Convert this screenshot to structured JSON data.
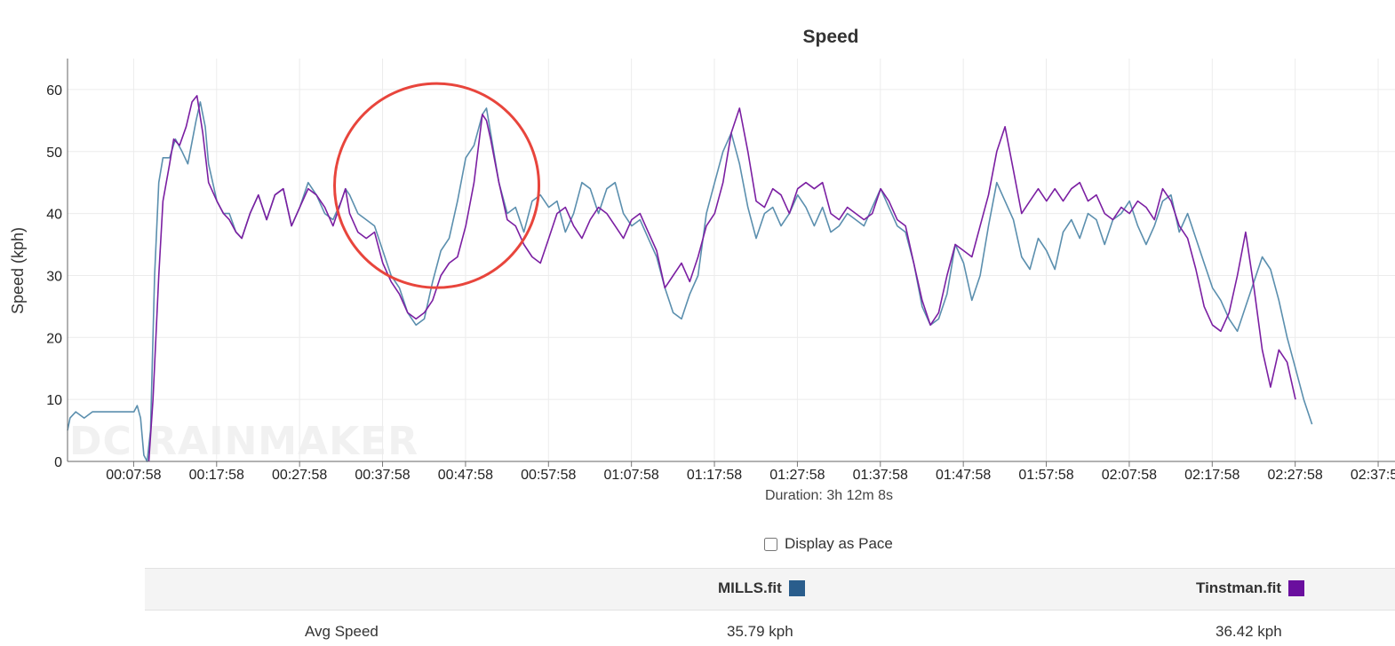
{
  "chart_data": {
    "type": "line",
    "title": "Speed",
    "ylabel": "Speed (kph)",
    "xlabel": "Duration: 3h 12m 8s",
    "watermark": "DC RAINMAKER",
    "ylim": [
      0,
      65
    ],
    "y_ticks": [
      "0",
      "10",
      "20",
      "30",
      "40",
      "50",
      "60"
    ],
    "x_range_min": [
      0,
      160
    ],
    "x_tick_labels": [
      "00:07:58",
      "00:17:58",
      "00:27:58",
      "00:37:58",
      "00:47:58",
      "00:57:58",
      "01:07:58",
      "01:17:58",
      "01:27:58",
      "01:37:58",
      "01:47:58",
      "01:57:58",
      "02:07:58",
      "02:17:58",
      "02:27:58",
      "02:37:58"
    ],
    "x_tick_minutes": [
      7.97,
      17.97,
      27.97,
      37.97,
      47.97,
      57.97,
      67.97,
      77.97,
      87.97,
      97.97,
      107.97,
      117.97,
      127.97,
      137.97,
      147.97,
      157.97
    ],
    "grid": true,
    "highlight_circle": {
      "center_min": 44.5,
      "center_kph": 44.5
    },
    "series": [
      {
        "name": "MILLS.fit",
        "color": "#5b8fae",
        "points": [
          [
            0,
            5
          ],
          [
            0.3,
            7
          ],
          [
            1,
            8
          ],
          [
            2,
            7
          ],
          [
            3,
            8
          ],
          [
            4,
            8
          ],
          [
            5,
            8
          ],
          [
            6,
            8
          ],
          [
            7,
            8
          ],
          [
            8,
            8
          ],
          [
            8.4,
            9
          ],
          [
            8.8,
            7
          ],
          [
            9.2,
            1
          ],
          [
            9.6,
            0
          ],
          [
            10,
            5
          ],
          [
            10.5,
            30
          ],
          [
            11,
            45
          ],
          [
            11.5,
            49
          ],
          [
            12.3,
            49
          ],
          [
            13,
            52
          ],
          [
            13.8,
            50
          ],
          [
            14.5,
            48
          ],
          [
            15.5,
            55
          ],
          [
            16,
            58
          ],
          [
            16.6,
            54
          ],
          [
            17,
            48
          ],
          [
            18,
            42
          ],
          [
            18.8,
            40
          ],
          [
            19.5,
            40
          ],
          [
            20.3,
            37
          ],
          [
            21,
            36
          ],
          [
            22,
            40
          ],
          [
            23,
            43
          ],
          [
            24,
            39
          ],
          [
            25,
            43
          ],
          [
            26,
            44
          ],
          [
            27,
            38
          ],
          [
            28,
            41
          ],
          [
            29,
            45
          ],
          [
            30,
            43
          ],
          [
            31,
            40
          ],
          [
            32,
            39
          ],
          [
            33,
            42
          ],
          [
            33.5,
            44
          ],
          [
            34,
            43
          ],
          [
            35,
            40
          ],
          [
            36,
            39
          ],
          [
            37,
            38
          ],
          [
            38,
            34
          ],
          [
            39,
            30
          ],
          [
            40,
            28
          ],
          [
            41,
            24
          ],
          [
            42,
            22
          ],
          [
            43,
            23
          ],
          [
            44,
            29
          ],
          [
            45,
            34
          ],
          [
            46,
            36
          ],
          [
            47,
            42
          ],
          [
            48,
            49
          ],
          [
            49,
            51
          ],
          [
            50,
            56
          ],
          [
            50.5,
            57
          ],
          [
            51,
            53
          ],
          [
            52,
            45
          ],
          [
            53,
            40
          ],
          [
            54,
            41
          ],
          [
            55,
            37
          ],
          [
            56,
            42
          ],
          [
            57,
            43
          ],
          [
            58,
            41
          ],
          [
            59,
            42
          ],
          [
            60,
            37
          ],
          [
            61,
            40
          ],
          [
            62,
            45
          ],
          [
            63,
            44
          ],
          [
            64,
            40
          ],
          [
            65,
            44
          ],
          [
            66,
            45
          ],
          [
            67,
            40
          ],
          [
            68,
            38
          ],
          [
            69,
            39
          ],
          [
            70,
            36
          ],
          [
            71,
            33
          ],
          [
            72,
            28
          ],
          [
            73,
            24
          ],
          [
            74,
            23
          ],
          [
            75,
            27
          ],
          [
            76,
            30
          ],
          [
            77,
            40
          ],
          [
            78,
            45
          ],
          [
            79,
            50
          ],
          [
            80,
            53
          ],
          [
            81,
            48
          ],
          [
            82,
            41
          ],
          [
            83,
            36
          ],
          [
            84,
            40
          ],
          [
            85,
            41
          ],
          [
            86,
            38
          ],
          [
            87,
            40
          ],
          [
            88,
            43
          ],
          [
            89,
            41
          ],
          [
            90,
            38
          ],
          [
            91,
            41
          ],
          [
            92,
            37
          ],
          [
            93,
            38
          ],
          [
            94,
            40
          ],
          [
            95,
            39
          ],
          [
            96,
            38
          ],
          [
            97,
            41
          ],
          [
            98,
            44
          ],
          [
            99,
            41
          ],
          [
            100,
            38
          ],
          [
            101,
            37
          ],
          [
            102,
            32
          ],
          [
            103,
            25
          ],
          [
            104,
            22
          ],
          [
            105,
            23
          ],
          [
            106,
            27
          ],
          [
            107,
            35
          ],
          [
            108,
            32
          ],
          [
            109,
            26
          ],
          [
            110,
            30
          ],
          [
            111,
            38
          ],
          [
            112,
            45
          ],
          [
            113,
            42
          ],
          [
            114,
            39
          ],
          [
            115,
            33
          ],
          [
            116,
            31
          ],
          [
            117,
            36
          ],
          [
            118,
            34
          ],
          [
            119,
            31
          ],
          [
            120,
            37
          ],
          [
            121,
            39
          ],
          [
            122,
            36
          ],
          [
            123,
            40
          ],
          [
            124,
            39
          ],
          [
            125,
            35
          ],
          [
            126,
            39
          ],
          [
            127,
            40
          ],
          [
            128,
            42
          ],
          [
            129,
            38
          ],
          [
            130,
            35
          ],
          [
            131,
            38
          ],
          [
            132,
            42
          ],
          [
            133,
            43
          ],
          [
            134,
            37
          ],
          [
            135,
            40
          ],
          [
            136,
            36
          ],
          [
            137,
            32
          ],
          [
            138,
            28
          ],
          [
            139,
            26
          ],
          [
            140,
            23
          ],
          [
            141,
            21
          ],
          [
            142,
            25
          ],
          [
            143,
            29
          ],
          [
            144,
            33
          ],
          [
            145,
            31
          ],
          [
            146,
            26
          ],
          [
            147,
            20
          ],
          [
            148,
            15
          ],
          [
            149,
            10
          ],
          [
            150,
            6
          ]
        ]
      },
      {
        "name": "Tinstman.fit",
        "color": "#7b1fa2",
        "points": [
          [
            9.8,
            0
          ],
          [
            10.3,
            10
          ],
          [
            11,
            30
          ],
          [
            11.5,
            42
          ],
          [
            12.3,
            48
          ],
          [
            12.8,
            52
          ],
          [
            13.5,
            51
          ],
          [
            14.3,
            54
          ],
          [
            15,
            58
          ],
          [
            15.6,
            59
          ],
          [
            16.3,
            53
          ],
          [
            17,
            45
          ],
          [
            18,
            42
          ],
          [
            18.8,
            40
          ],
          [
            19.5,
            39
          ],
          [
            20.3,
            37
          ],
          [
            21,
            36
          ],
          [
            22,
            40
          ],
          [
            23,
            43
          ],
          [
            24,
            39
          ],
          [
            25,
            43
          ],
          [
            26,
            44
          ],
          [
            27,
            38
          ],
          [
            28,
            41
          ],
          [
            29,
            44
          ],
          [
            30,
            43
          ],
          [
            31,
            41
          ],
          [
            32,
            38
          ],
          [
            33,
            42
          ],
          [
            33.5,
            44
          ],
          [
            34,
            40
          ],
          [
            35,
            37
          ],
          [
            36,
            36
          ],
          [
            37,
            37
          ],
          [
            38,
            32
          ],
          [
            39,
            29
          ],
          [
            40,
            27
          ],
          [
            41,
            24
          ],
          [
            42,
            23
          ],
          [
            43,
            24
          ],
          [
            44,
            26
          ],
          [
            45,
            30
          ],
          [
            46,
            32
          ],
          [
            47,
            33
          ],
          [
            48,
            38
          ],
          [
            49,
            45
          ],
          [
            50,
            56
          ],
          [
            50.5,
            55
          ],
          [
            51,
            52
          ],
          [
            52,
            45
          ],
          [
            53,
            39
          ],
          [
            54,
            38
          ],
          [
            55,
            35
          ],
          [
            56,
            33
          ],
          [
            57,
            32
          ],
          [
            58,
            36
          ],
          [
            59,
            40
          ],
          [
            60,
            41
          ],
          [
            61,
            38
          ],
          [
            62,
            36
          ],
          [
            63,
            39
          ],
          [
            64,
            41
          ],
          [
            65,
            40
          ],
          [
            66,
            38
          ],
          [
            67,
            36
          ],
          [
            68,
            39
          ],
          [
            69,
            40
          ],
          [
            70,
            37
          ],
          [
            71,
            34
          ],
          [
            72,
            28
          ],
          [
            73,
            30
          ],
          [
            74,
            32
          ],
          [
            75,
            29
          ],
          [
            76,
            33
          ],
          [
            77,
            38
          ],
          [
            78,
            40
          ],
          [
            79,
            45
          ],
          [
            80,
            53
          ],
          [
            81,
            57
          ],
          [
            82,
            50
          ],
          [
            83,
            42
          ],
          [
            84,
            41
          ],
          [
            85,
            44
          ],
          [
            86,
            43
          ],
          [
            87,
            40
          ],
          [
            88,
            44
          ],
          [
            89,
            45
          ],
          [
            90,
            44
          ],
          [
            91,
            45
          ],
          [
            92,
            40
          ],
          [
            93,
            39
          ],
          [
            94,
            41
          ],
          [
            95,
            40
          ],
          [
            96,
            39
          ],
          [
            97,
            40
          ],
          [
            98,
            44
          ],
          [
            99,
            42
          ],
          [
            100,
            39
          ],
          [
            101,
            38
          ],
          [
            102,
            32
          ],
          [
            103,
            26
          ],
          [
            104,
            22
          ],
          [
            105,
            24
          ],
          [
            106,
            30
          ],
          [
            107,
            35
          ],
          [
            108,
            34
          ],
          [
            109,
            33
          ],
          [
            110,
            38
          ],
          [
            111,
            43
          ],
          [
            112,
            50
          ],
          [
            113,
            54
          ],
          [
            114,
            47
          ],
          [
            115,
            40
          ],
          [
            116,
            42
          ],
          [
            117,
            44
          ],
          [
            118,
            42
          ],
          [
            119,
            44
          ],
          [
            120,
            42
          ],
          [
            121,
            44
          ],
          [
            122,
            45
          ],
          [
            123,
            42
          ],
          [
            124,
            43
          ],
          [
            125,
            40
          ],
          [
            126,
            39
          ],
          [
            127,
            41
          ],
          [
            128,
            40
          ],
          [
            129,
            42
          ],
          [
            130,
            41
          ],
          [
            131,
            39
          ],
          [
            132,
            44
          ],
          [
            133,
            42
          ],
          [
            134,
            38
          ],
          [
            135,
            36
          ],
          [
            136,
            31
          ],
          [
            137,
            25
          ],
          [
            138,
            22
          ],
          [
            139,
            21
          ],
          [
            140,
            24
          ],
          [
            141,
            30
          ],
          [
            142,
            37
          ],
          [
            143,
            28
          ],
          [
            144,
            18
          ],
          [
            145,
            12
          ],
          [
            146,
            18
          ],
          [
            147,
            16
          ],
          [
            148,
            10
          ]
        ]
      }
    ]
  },
  "display_as_pace": {
    "label": "Display as Pace",
    "checked": false
  },
  "stats_table": {
    "files": [
      {
        "name": "MILLS.fit",
        "color": "#2a5d8c"
      },
      {
        "name": "Tinstman.fit",
        "color": "#6a0f9e"
      }
    ],
    "rows": [
      {
        "label": "Avg Speed",
        "values": [
          "35.79 kph",
          "36.42 kph"
        ]
      }
    ]
  }
}
